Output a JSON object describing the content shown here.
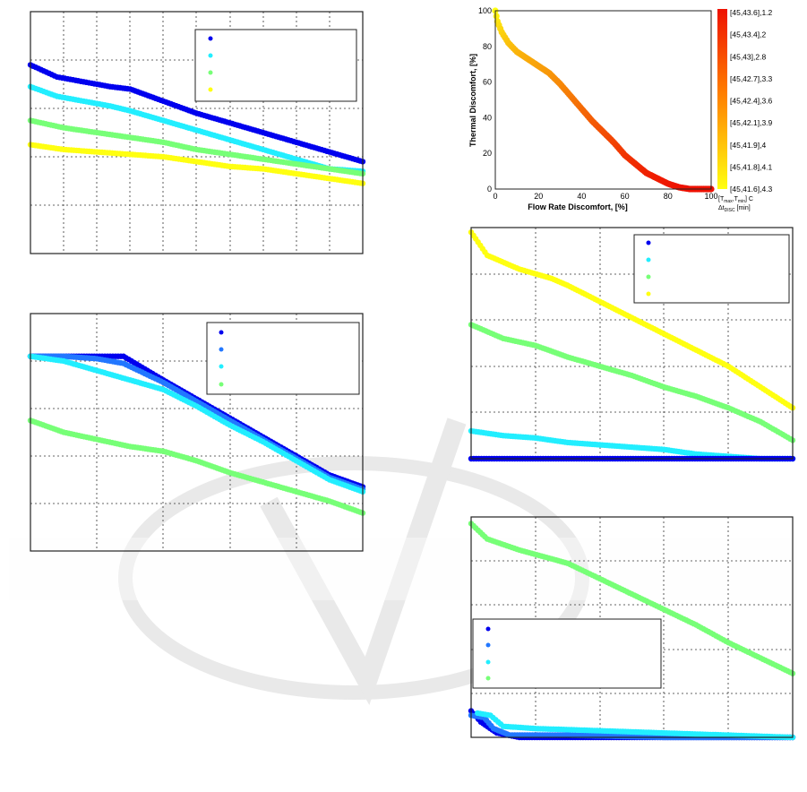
{
  "chart_data": [
    {
      "type": "scatter",
      "title": "",
      "xlabel": "",
      "ylabel": "",
      "xlim": [
        0,
        100
      ],
      "ylim": [
        0,
        100
      ],
      "x_gridlines": 10,
      "y_gridlines": 5,
      "grid": true,
      "legend": {
        "placement": "top-right",
        "entries": 4
      },
      "series": [
        {
          "color": "#0000ee",
          "points": [
            [
              0,
              78
            ],
            [
              8,
              73
            ],
            [
              16,
              71
            ],
            [
              24,
              69
            ],
            [
              30,
              68
            ],
            [
              40,
              63
            ],
            [
              50,
              58
            ],
            [
              60,
              54
            ],
            [
              70,
              50
            ],
            [
              80,
              46
            ],
            [
              90,
              42
            ],
            [
              100,
              38
            ]
          ]
        },
        {
          "color": "#22eeff",
          "points": [
            [
              0,
              69
            ],
            [
              8,
              65
            ],
            [
              16,
              63
            ],
            [
              24,
              61
            ],
            [
              30,
              59
            ],
            [
              40,
              55
            ],
            [
              50,
              51
            ],
            [
              60,
              47
            ],
            [
              70,
              43
            ],
            [
              80,
              39
            ],
            [
              90,
              35
            ],
            [
              100,
              34
            ]
          ]
        },
        {
          "color": "#77ff77",
          "points": [
            [
              0,
              55
            ],
            [
              10,
              52
            ],
            [
              20,
              50
            ],
            [
              30,
              48
            ],
            [
              40,
              46
            ],
            [
              50,
              43
            ],
            [
              60,
              41
            ],
            [
              70,
              39
            ],
            [
              80,
              37
            ],
            [
              90,
              35
            ],
            [
              100,
              33
            ]
          ]
        },
        {
          "color": "#ffff11",
          "points": [
            [
              0,
              45
            ],
            [
              10,
              43
            ],
            [
              20,
              42
            ],
            [
              30,
              41
            ],
            [
              40,
              40
            ],
            [
              50,
              38
            ],
            [
              60,
              36
            ],
            [
              70,
              35
            ],
            [
              80,
              33
            ],
            [
              90,
              31
            ],
            [
              100,
              29
            ]
          ]
        }
      ]
    },
    {
      "type": "scatter",
      "title": "",
      "xlabel": "",
      "ylabel": "",
      "xlim": [
        0,
        100
      ],
      "ylim": [
        0,
        100
      ],
      "x_gridlines": 5,
      "y_gridlines": 5,
      "grid": true,
      "legend": {
        "placement": "top-right",
        "entries": 4
      },
      "series": [
        {
          "color": "#0000ee",
          "points": [
            [
              0,
              82
            ],
            [
              10,
              82
            ],
            [
              20,
              82
            ],
            [
              28,
              82
            ],
            [
              40,
              72
            ],
            [
              50,
              64
            ],
            [
              60,
              56
            ],
            [
              70,
              48
            ],
            [
              80,
              40
            ],
            [
              90,
              32
            ],
            [
              100,
              27
            ]
          ]
        },
        {
          "color": "#2277ff",
          "points": [
            [
              0,
              82
            ],
            [
              10,
              82
            ],
            [
              20,
              81
            ],
            [
              28,
              79
            ],
            [
              40,
              71
            ],
            [
              50,
              63
            ],
            [
              60,
              55
            ],
            [
              70,
              47
            ],
            [
              80,
              39
            ],
            [
              90,
              31
            ],
            [
              100,
              26
            ]
          ]
        },
        {
          "color": "#22eeff",
          "points": [
            [
              0,
              82
            ],
            [
              10,
              80
            ],
            [
              20,
              76
            ],
            [
              30,
              72
            ],
            [
              40,
              68
            ],
            [
              50,
              61
            ],
            [
              60,
              53
            ],
            [
              70,
              46
            ],
            [
              80,
              38
            ],
            [
              90,
              30
            ],
            [
              100,
              25
            ]
          ]
        },
        {
          "color": "#77ff77",
          "points": [
            [
              0,
              55
            ],
            [
              10,
              50
            ],
            [
              20,
              47
            ],
            [
              30,
              44
            ],
            [
              40,
              42
            ],
            [
              50,
              38
            ],
            [
              60,
              33
            ],
            [
              70,
              29
            ],
            [
              80,
              25
            ],
            [
              90,
              21
            ],
            [
              100,
              16
            ]
          ]
        }
      ]
    },
    {
      "type": "scatter",
      "title": "",
      "xlabel": "Flow Rate Discomfort, [%]",
      "ylabel": "Thermal Discomfort, [%]",
      "xlim": [
        0,
        100
      ],
      "ylim": [
        0,
        100
      ],
      "x_ticks": [
        "0",
        "20",
        "40",
        "60",
        "80",
        "100"
      ],
      "y_ticks": [
        "0",
        "20",
        "40",
        "60",
        "80",
        "100"
      ],
      "grid": false,
      "colorbar": {
        "labels": [
          "[45,43.6],1.2",
          "[45,43.4],2",
          "[45,43],2.8",
          "[45,42.7],3.3",
          "[45,42.4],3.6",
          "[45,42.1],3.9",
          "[45,41.9],4",
          "[45,41.8],4.1",
          "[45,41.6],4.3"
        ],
        "title_prefix": "[T",
        "title_sub": "max",
        "title_mid": ",T",
        "title_sub2": "min",
        "title_suffix": "] C",
        "title2_prefix": "Δt",
        "title2_sub": "DISC",
        "title2_suffix": " [min]",
        "color_top": "#ee1100",
        "color_bottom": "#ffff11"
      },
      "series": [
        {
          "color": "gradient",
          "points": [
            [
              0,
              100
            ],
            [
              1,
              94
            ],
            [
              3,
              88
            ],
            [
              6,
              82
            ],
            [
              10,
              77
            ],
            [
              15,
              73
            ],
            [
              20,
              69
            ],
            [
              25,
              65
            ],
            [
              30,
              59
            ],
            [
              35,
              52
            ],
            [
              40,
              45
            ],
            [
              45,
              38
            ],
            [
              50,
              32
            ],
            [
              55,
              26
            ],
            [
              60,
              19
            ],
            [
              65,
              14
            ],
            [
              70,
              9
            ],
            [
              75,
              6
            ],
            [
              80,
              3
            ],
            [
              85,
              1
            ],
            [
              90,
              0
            ],
            [
              95,
              0
            ],
            [
              100,
              0
            ]
          ]
        }
      ]
    },
    {
      "type": "scatter",
      "title": "",
      "xlabel": "",
      "ylabel": "",
      "xlim": [
        0,
        100
      ],
      "ylim": [
        0,
        100
      ],
      "x_gridlines": 5,
      "y_gridlines": 5,
      "grid": true,
      "legend": {
        "placement": "top-right",
        "entries": 4
      },
      "series": [
        {
          "color": "#ffff11",
          "points": [
            [
              0,
              98
            ],
            [
              5,
              88
            ],
            [
              15,
              82
            ],
            [
              25,
              78
            ],
            [
              30,
              75
            ],
            [
              40,
              68
            ],
            [
              50,
              61
            ],
            [
              60,
              54
            ],
            [
              70,
              47
            ],
            [
              80,
              40
            ],
            [
              90,
              31
            ],
            [
              100,
              22
            ]
          ]
        },
        {
          "color": "#77ff77",
          "points": [
            [
              0,
              58
            ],
            [
              10,
              52
            ],
            [
              20,
              49
            ],
            [
              30,
              44
            ],
            [
              40,
              40
            ],
            [
              50,
              36
            ],
            [
              60,
              31
            ],
            [
              70,
              27
            ],
            [
              80,
              22
            ],
            [
              90,
              16
            ],
            [
              100,
              8
            ]
          ]
        },
        {
          "color": "#22eeff",
          "points": [
            [
              0,
              12
            ],
            [
              10,
              10
            ],
            [
              20,
              9
            ],
            [
              30,
              7
            ],
            [
              40,
              6
            ],
            [
              50,
              5
            ],
            [
              60,
              4
            ],
            [
              70,
              2
            ],
            [
              80,
              1
            ],
            [
              90,
              0
            ],
            [
              100,
              0
            ]
          ]
        },
        {
          "color": "#0000ee",
          "points": [
            [
              0,
              0
            ],
            [
              20,
              0
            ],
            [
              40,
              0
            ],
            [
              60,
              0
            ],
            [
              80,
              0
            ],
            [
              100,
              0
            ]
          ]
        }
      ]
    },
    {
      "type": "scatter",
      "title": "",
      "xlabel": "",
      "ylabel": "",
      "xlim": [
        0,
        100
      ],
      "ylim": [
        0,
        100
      ],
      "x_gridlines": 5,
      "y_gridlines": 5,
      "grid": true,
      "legend": {
        "placement": "bottom-left",
        "entries": 4
      },
      "series": [
        {
          "color": "#77ff77",
          "points": [
            [
              0,
              97
            ],
            [
              5,
              90
            ],
            [
              15,
              85
            ],
            [
              25,
              81
            ],
            [
              30,
              79
            ],
            [
              40,
              72
            ],
            [
              50,
              65
            ],
            [
              60,
              58
            ],
            [
              70,
              51
            ],
            [
              80,
              43
            ],
            [
              90,
              36
            ],
            [
              100,
              29
            ]
          ]
        },
        {
          "color": "#0000ee",
          "points": [
            [
              0,
              12
            ],
            [
              3,
              7
            ],
            [
              8,
              2
            ],
            [
              15,
              0
            ],
            [
              30,
              0
            ],
            [
              50,
              0
            ],
            [
              70,
              0
            ],
            [
              100,
              0
            ]
          ]
        },
        {
          "color": "#2277ff",
          "points": [
            [
              0,
              10
            ],
            [
              4,
              9
            ],
            [
              7,
              4
            ],
            [
              12,
              1
            ],
            [
              30,
              1
            ],
            [
              60,
              0
            ],
            [
              100,
              0
            ]
          ]
        },
        {
          "color": "#22eeff",
          "points": [
            [
              2,
              11
            ],
            [
              6,
              10
            ],
            [
              10,
              5
            ],
            [
              20,
              4
            ],
            [
              40,
              3
            ],
            [
              60,
              2
            ],
            [
              80,
              1
            ],
            [
              100,
              0
            ]
          ]
        }
      ]
    }
  ]
}
